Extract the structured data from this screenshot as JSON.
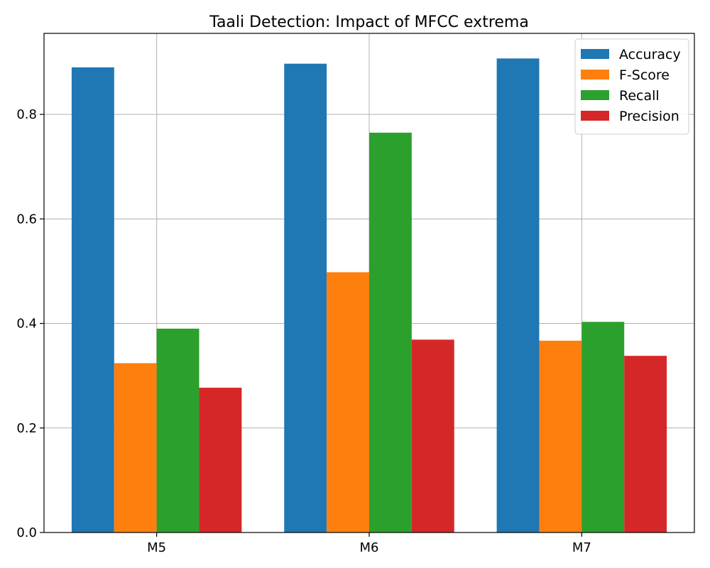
{
  "chart_data": {
    "type": "bar",
    "title": "Taali Detection: Impact of MFCC extrema",
    "xlabel": "",
    "ylabel": "",
    "categories": [
      "M5",
      "M6",
      "M7"
    ],
    "ylim": [
      0,
      0.955
    ],
    "yticks": [
      0.0,
      0.2,
      0.4,
      0.6,
      0.8
    ],
    "ytick_labels": [
      "0.0",
      "0.2",
      "0.4",
      "0.6",
      "0.8"
    ],
    "grid": true,
    "legend_position": "top-right",
    "series": [
      {
        "name": "Accuracy",
        "color": "#1f77b4",
        "values": [
          0.89,
          0.897,
          0.907
        ]
      },
      {
        "name": "F-Score",
        "color": "#ff7f0e",
        "values": [
          0.324,
          0.498,
          0.367
        ]
      },
      {
        "name": "Recall",
        "color": "#2ca02c",
        "values": [
          0.39,
          0.765,
          0.403
        ]
      },
      {
        "name": "Precision",
        "color": "#d62728",
        "values": [
          0.277,
          0.369,
          0.338
        ]
      }
    ]
  }
}
